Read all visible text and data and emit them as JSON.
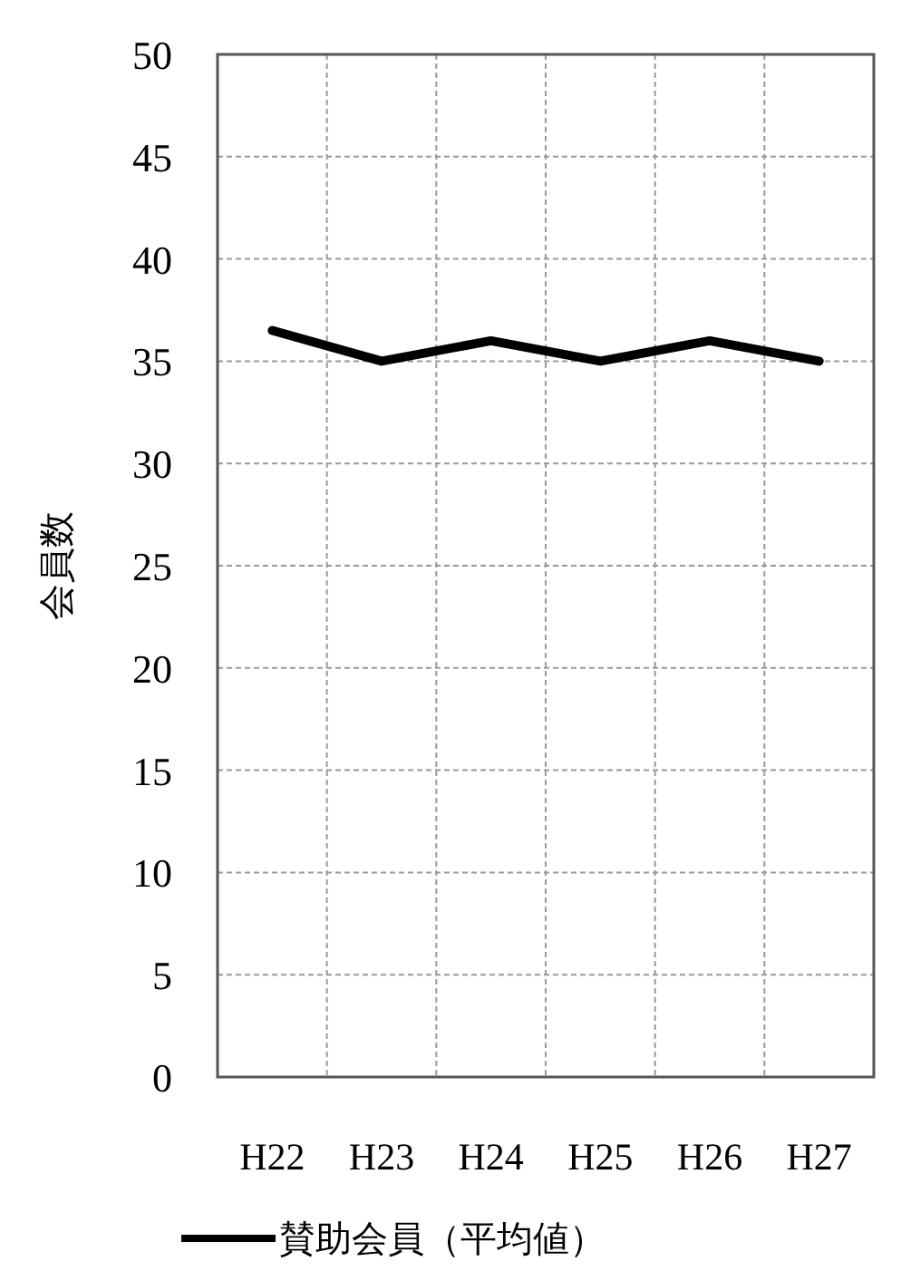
{
  "chart_data": {
    "type": "line",
    "ylabel": "会員数",
    "categories": [
      "H22",
      "H23",
      "H24",
      "H25",
      "H26",
      "H27"
    ],
    "series": [
      {
        "name": "賛助会員（平均値）",
        "color": "#000000",
        "values": [
          36.5,
          35,
          36,
          35,
          36,
          35
        ]
      }
    ],
    "ylim": [
      0,
      50
    ],
    "yticks": [
      0,
      5,
      10,
      15,
      20,
      25,
      30,
      35,
      40,
      45,
      50
    ],
    "grid": true,
    "legend": "bottom",
    "marker": "none",
    "line_style": "solid"
  }
}
